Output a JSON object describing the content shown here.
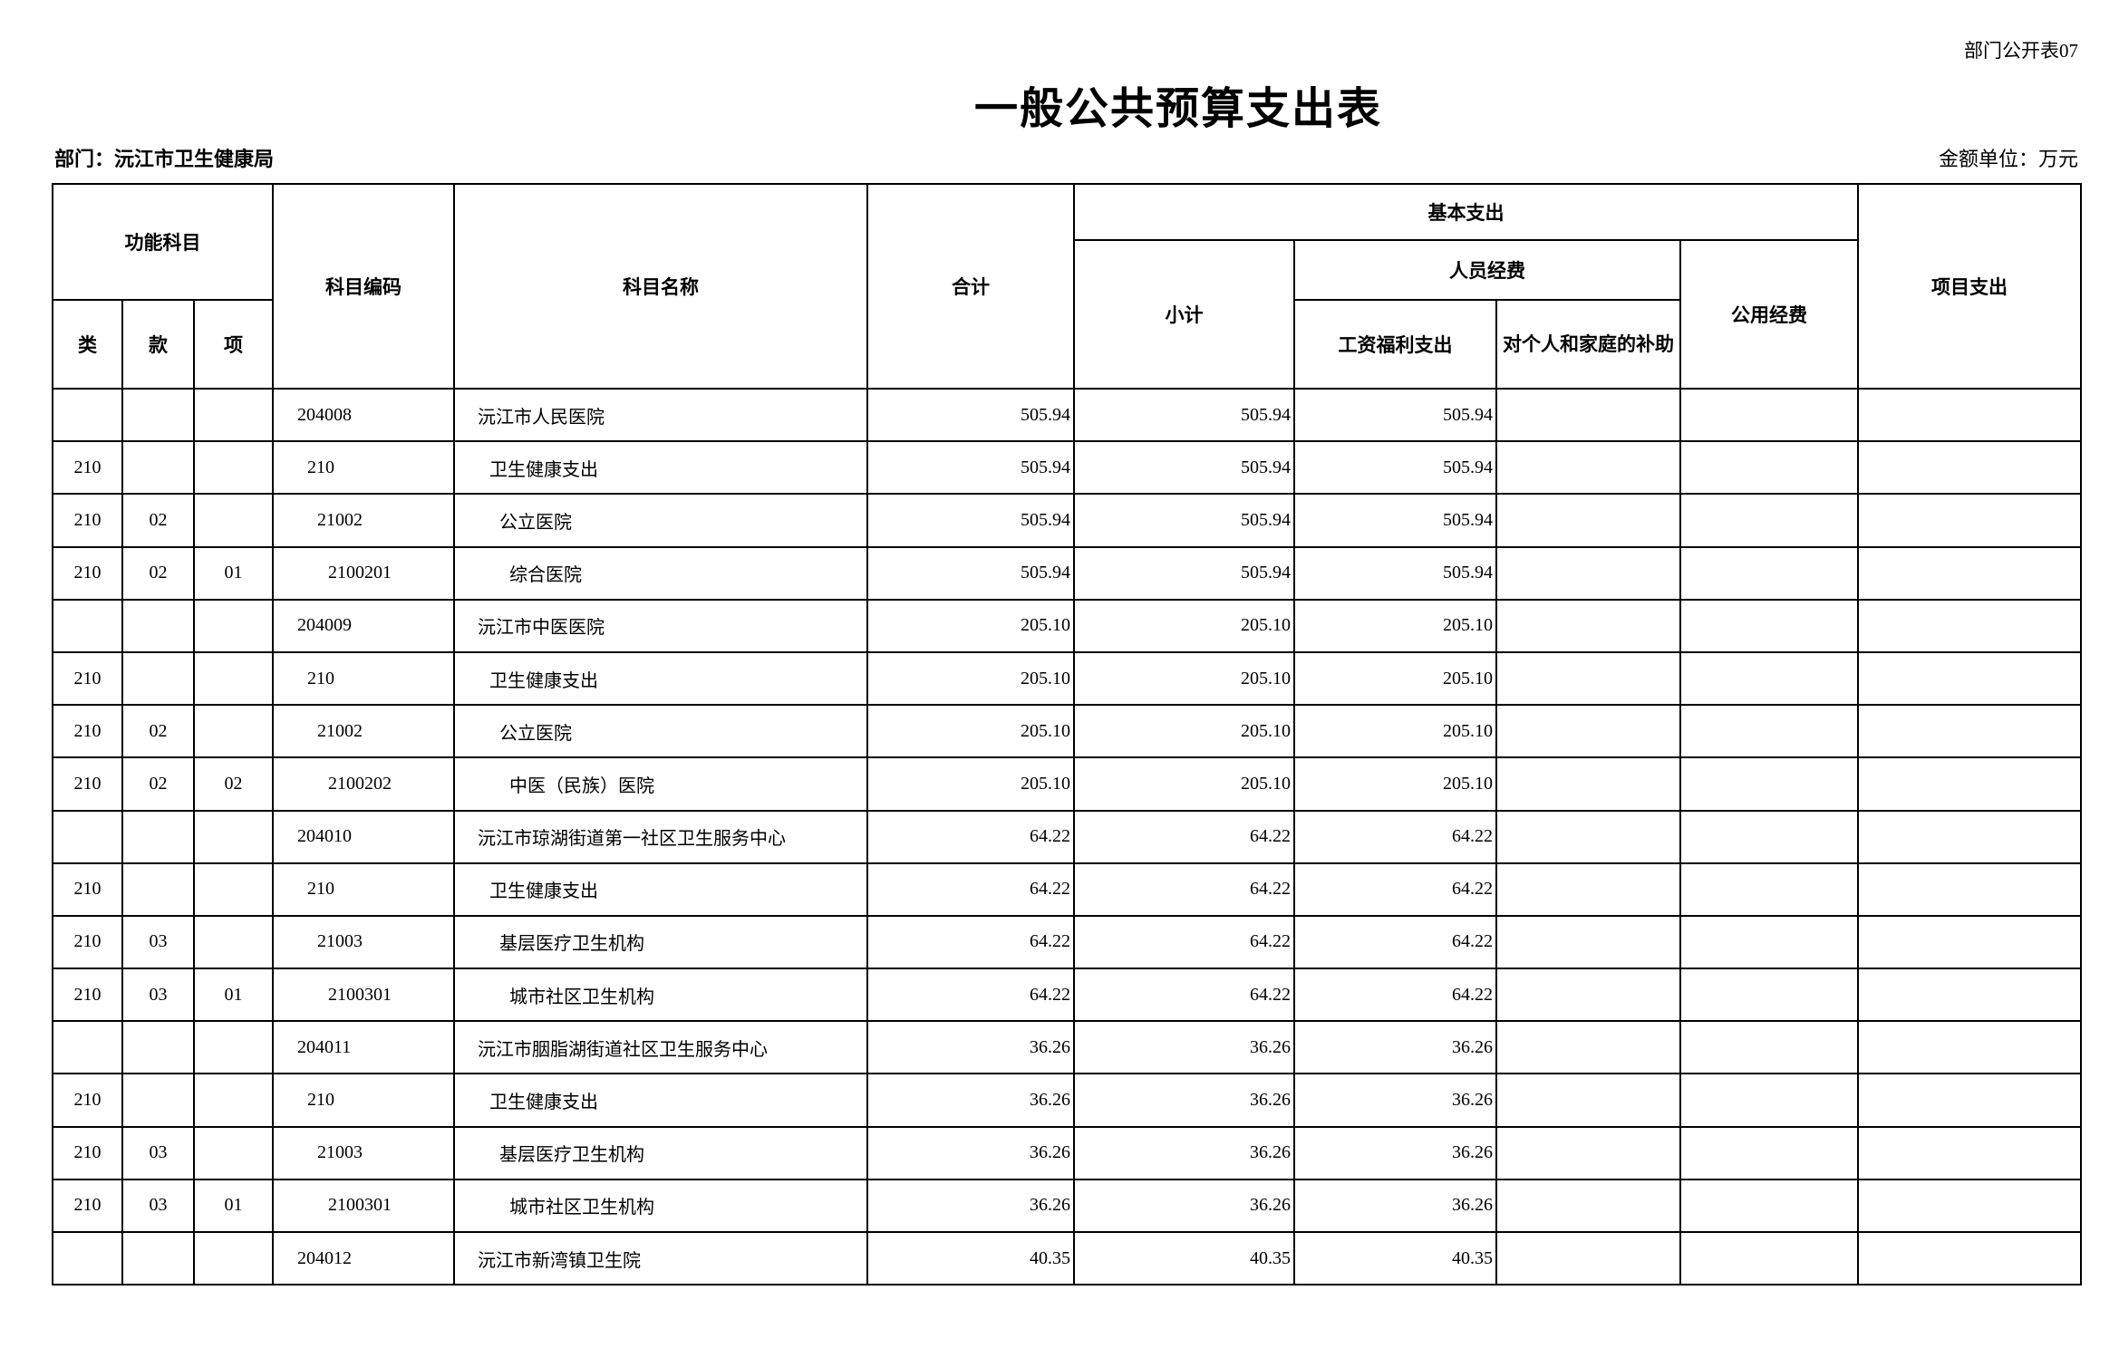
{
  "header": {
    "form_no": "部门公开表07",
    "title": "一般公共预算支出表",
    "department": "部门：沅江市卫生健康局",
    "unit": "金额单位：万元"
  },
  "columns": {
    "func_subject": "功能科目",
    "lei": "类",
    "kuan": "款",
    "xiang": "项",
    "code": "科目编码",
    "name": "科目名称",
    "total": "合计",
    "basic": "基本支出",
    "subtotal": "小计",
    "personnel": "人员经费",
    "wages": "工资福利支出",
    "family_subsidy": "对个人和家庭的补助",
    "public": "公用经费",
    "project": "项目支出"
  },
  "rows": [
    {
      "lei": "",
      "kuan": "",
      "xiang": "",
      "code": "204008",
      "name": "沅江市人民医院",
      "level": 0,
      "total": "505.94",
      "subtotal": "505.94",
      "wages": "505.94",
      "family_subsidy": "",
      "public": "",
      "project": ""
    },
    {
      "lei": "210",
      "kuan": "",
      "xiang": "",
      "code": "210",
      "name": "卫生健康支出",
      "level": 1,
      "total": "505.94",
      "subtotal": "505.94",
      "wages": "505.94",
      "family_subsidy": "",
      "public": "",
      "project": ""
    },
    {
      "lei": "210",
      "kuan": "02",
      "xiang": "",
      "code": "21002",
      "name": "公立医院",
      "level": 2,
      "total": "505.94",
      "subtotal": "505.94",
      "wages": "505.94",
      "family_subsidy": "",
      "public": "",
      "project": ""
    },
    {
      "lei": "210",
      "kuan": "02",
      "xiang": "01",
      "code": "2100201",
      "name": "综合医院",
      "level": 3,
      "total": "505.94",
      "subtotal": "505.94",
      "wages": "505.94",
      "family_subsidy": "",
      "public": "",
      "project": ""
    },
    {
      "lei": "",
      "kuan": "",
      "xiang": "",
      "code": "204009",
      "name": "沅江市中医医院",
      "level": 0,
      "total": "205.10",
      "subtotal": "205.10",
      "wages": "205.10",
      "family_subsidy": "",
      "public": "",
      "project": ""
    },
    {
      "lei": "210",
      "kuan": "",
      "xiang": "",
      "code": "210",
      "name": "卫生健康支出",
      "level": 1,
      "total": "205.10",
      "subtotal": "205.10",
      "wages": "205.10",
      "family_subsidy": "",
      "public": "",
      "project": ""
    },
    {
      "lei": "210",
      "kuan": "02",
      "xiang": "",
      "code": "21002",
      "name": "公立医院",
      "level": 2,
      "total": "205.10",
      "subtotal": "205.10",
      "wages": "205.10",
      "family_subsidy": "",
      "public": "",
      "project": ""
    },
    {
      "lei": "210",
      "kuan": "02",
      "xiang": "02",
      "code": "2100202",
      "name": "中医（民族）医院",
      "level": 3,
      "total": "205.10",
      "subtotal": "205.10",
      "wages": "205.10",
      "family_subsidy": "",
      "public": "",
      "project": ""
    },
    {
      "lei": "",
      "kuan": "",
      "xiang": "",
      "code": "204010",
      "name": "沅江市琼湖街道第一社区卫生服务中心",
      "level": 0,
      "total": "64.22",
      "subtotal": "64.22",
      "wages": "64.22",
      "family_subsidy": "",
      "public": "",
      "project": ""
    },
    {
      "lei": "210",
      "kuan": "",
      "xiang": "",
      "code": "210",
      "name": "卫生健康支出",
      "level": 1,
      "total": "64.22",
      "subtotal": "64.22",
      "wages": "64.22",
      "family_subsidy": "",
      "public": "",
      "project": ""
    },
    {
      "lei": "210",
      "kuan": "03",
      "xiang": "",
      "code": "21003",
      "name": "基层医疗卫生机构",
      "level": 2,
      "total": "64.22",
      "subtotal": "64.22",
      "wages": "64.22",
      "family_subsidy": "",
      "public": "",
      "project": ""
    },
    {
      "lei": "210",
      "kuan": "03",
      "xiang": "01",
      "code": "2100301",
      "name": "城市社区卫生机构",
      "level": 3,
      "total": "64.22",
      "subtotal": "64.22",
      "wages": "64.22",
      "family_subsidy": "",
      "public": "",
      "project": ""
    },
    {
      "lei": "",
      "kuan": "",
      "xiang": "",
      "code": "204011",
      "name": "沅江市胭脂湖街道社区卫生服务中心",
      "level": 0,
      "total": "36.26",
      "subtotal": "36.26",
      "wages": "36.26",
      "family_subsidy": "",
      "public": "",
      "project": ""
    },
    {
      "lei": "210",
      "kuan": "",
      "xiang": "",
      "code": "210",
      "name": "卫生健康支出",
      "level": 1,
      "total": "36.26",
      "subtotal": "36.26",
      "wages": "36.26",
      "family_subsidy": "",
      "public": "",
      "project": ""
    },
    {
      "lei": "210",
      "kuan": "03",
      "xiang": "",
      "code": "21003",
      "name": "基层医疗卫生机构",
      "level": 2,
      "total": "36.26",
      "subtotal": "36.26",
      "wages": "36.26",
      "family_subsidy": "",
      "public": "",
      "project": ""
    },
    {
      "lei": "210",
      "kuan": "03",
      "xiang": "01",
      "code": "2100301",
      "name": "城市社区卫生机构",
      "level": 3,
      "total": "36.26",
      "subtotal": "36.26",
      "wages": "36.26",
      "family_subsidy": "",
      "public": "",
      "project": ""
    },
    {
      "lei": "",
      "kuan": "",
      "xiang": "",
      "code": "204012",
      "name": "沅江市新湾镇卫生院",
      "level": 0,
      "total": "40.35",
      "subtotal": "40.35",
      "wages": "40.35",
      "family_subsidy": "",
      "public": "",
      "project": ""
    }
  ]
}
